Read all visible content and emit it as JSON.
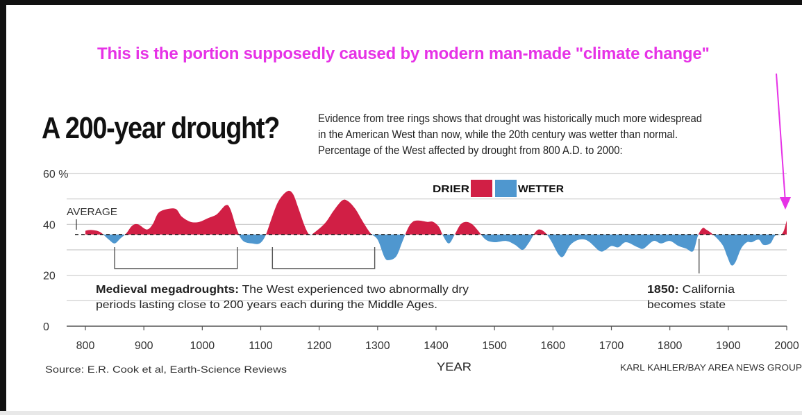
{
  "annotation": "This is the portion supposedly caused by modern man-made \"climate change\"",
  "headline": "A 200-year drought?",
  "description": [
    "Evidence from tree rings shows that drought was historically much more widespread",
    "in the American West than now, while the 20th century was wetter than normal.",
    "Percentage of the West affected by drought from 800 A.D. to 2000:"
  ],
  "colors": {
    "drier": "#d11f45",
    "wetter": "#4f97cf",
    "annotation": "#e632e6"
  },
  "legend": {
    "drier": "DRIER",
    "wetter": "WETTER"
  },
  "average_label": "AVERAGE",
  "megadrought_note": {
    "bold": "Medieval megadroughts:",
    "text1": " The West experienced two abnormally dry",
    "text2": "periods lasting close to 200 years each during the Middle Ages."
  },
  "california_note": {
    "bold": "1850:",
    "text1": " California",
    "text2": "becomes state"
  },
  "source": "Source: E.R. Cook et al, Earth-Science Reviews",
  "credit": "KARL KAHLER/BAY AREA NEWS GROUP",
  "chart_data": {
    "type": "area",
    "xlabel": "YEAR",
    "ylabel": "",
    "xlim": [
      800,
      2000
    ],
    "ylim": [
      0,
      60
    ],
    "average": 36,
    "y_ticks": [
      {
        "value": 60,
        "label": "60 %"
      },
      {
        "value": 40,
        "label": "40"
      },
      {
        "value": 20,
        "label": "20"
      },
      {
        "value": 0,
        "label": "0"
      }
    ],
    "x_ticks": [
      800,
      900,
      1000,
      1100,
      1200,
      1300,
      1400,
      1500,
      1600,
      1700,
      1800,
      1900,
      2000
    ],
    "megadrought_periods": [
      [
        850,
        1060
      ],
      [
        1120,
        1295
      ]
    ],
    "event_marker_year": 1850,
    "series": [
      {
        "values": [
          [
            800,
            37.5
          ],
          [
            810,
            37.8
          ],
          [
            825,
            37
          ],
          [
            840,
            34
          ],
          [
            850,
            32.5
          ],
          [
            860,
            34.5
          ],
          [
            870,
            36.5
          ],
          [
            880,
            39.5
          ],
          [
            890,
            40
          ],
          [
            905,
            38
          ],
          [
            915,
            40
          ],
          [
            925,
            44.5
          ],
          [
            940,
            46
          ],
          [
            955,
            46
          ],
          [
            965,
            43
          ],
          [
            980,
            41
          ],
          [
            995,
            41
          ],
          [
            1010,
            42.5
          ],
          [
            1025,
            44
          ],
          [
            1040,
            47.5
          ],
          [
            1048,
            46
          ],
          [
            1060,
            37.5
          ],
          [
            1070,
            33.5
          ],
          [
            1085,
            32.5
          ],
          [
            1098,
            32.5
          ],
          [
            1108,
            35.5
          ],
          [
            1118,
            42
          ],
          [
            1130,
            49
          ],
          [
            1145,
            53
          ],
          [
            1155,
            52
          ],
          [
            1165,
            46
          ],
          [
            1175,
            39.5
          ],
          [
            1183,
            36
          ],
          [
            1190,
            36.5
          ],
          [
            1210,
            40.5
          ],
          [
            1225,
            45.5
          ],
          [
            1240,
            49.5
          ],
          [
            1250,
            49
          ],
          [
            1262,
            46
          ],
          [
            1275,
            41
          ],
          [
            1288,
            36.5
          ],
          [
            1300,
            34
          ],
          [
            1312,
            27
          ],
          [
            1320,
            26
          ],
          [
            1332,
            27.5
          ],
          [
            1342,
            33
          ],
          [
            1352,
            38.5
          ],
          [
            1360,
            41
          ],
          [
            1370,
            41.5
          ],
          [
            1385,
            41
          ],
          [
            1395,
            41
          ],
          [
            1405,
            39
          ],
          [
            1412,
            35.5
          ],
          [
            1422,
            32.5
          ],
          [
            1432,
            36
          ],
          [
            1442,
            40
          ],
          [
            1452,
            41
          ],
          [
            1462,
            40
          ],
          [
            1472,
            37.5
          ],
          [
            1485,
            34
          ],
          [
            1500,
            33
          ],
          [
            1520,
            33.5
          ],
          [
            1535,
            32
          ],
          [
            1548,
            30
          ],
          [
            1558,
            32.5
          ],
          [
            1570,
            37
          ],
          [
            1578,
            38
          ],
          [
            1588,
            36.5
          ],
          [
            1598,
            33
          ],
          [
            1610,
            28
          ],
          [
            1618,
            27.5
          ],
          [
            1630,
            32
          ],
          [
            1645,
            34
          ],
          [
            1660,
            33.5
          ],
          [
            1680,
            29.5
          ],
          [
            1690,
            30
          ],
          [
            1700,
            31.5
          ],
          [
            1712,
            31
          ],
          [
            1725,
            33
          ],
          [
            1745,
            31
          ],
          [
            1755,
            30.5
          ],
          [
            1772,
            33.5
          ],
          [
            1785,
            32.5
          ],
          [
            1800,
            33.5
          ],
          [
            1815,
            31.5
          ],
          [
            1828,
            30.5
          ],
          [
            1840,
            29.5
          ],
          [
            1848,
            35.5
          ],
          [
            1856,
            38.5
          ],
          [
            1862,
            38
          ],
          [
            1874,
            36
          ],
          [
            1890,
            32
          ],
          [
            1898,
            27.5
          ],
          [
            1905,
            24
          ],
          [
            1912,
            25
          ],
          [
            1922,
            30.5
          ],
          [
            1932,
            33
          ],
          [
            1940,
            33
          ],
          [
            1952,
            34
          ],
          [
            1960,
            32
          ],
          [
            1972,
            32.5
          ],
          [
            1980,
            35.5
          ],
          [
            1990,
            36
          ],
          [
            1995,
            37.5
          ],
          [
            2000,
            41.5
          ]
        ]
      }
    ]
  }
}
